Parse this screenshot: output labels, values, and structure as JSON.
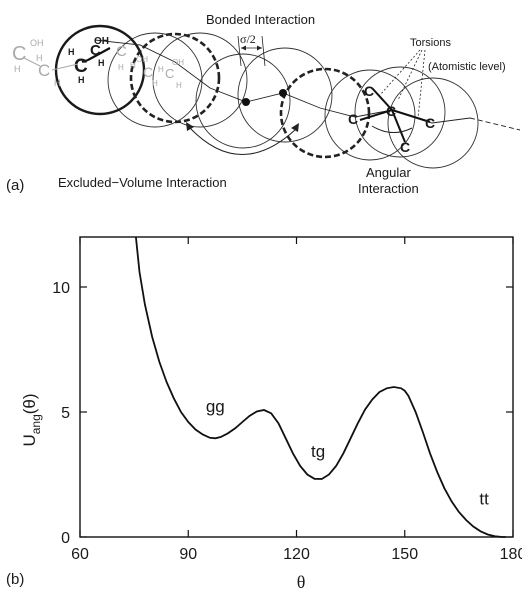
{
  "panel_a": {
    "label": "(a)",
    "bonded_label": "Bonded Interaction",
    "sigma_label": "σ/2",
    "torsions_label": "Torsions",
    "atomistic_label": "(Atomistic level)",
    "excluded_label": "Excluded−Volume Interaction",
    "angular_label_1": "Angular",
    "angular_label_2": "Interaction",
    "atoms": {
      "carbon": "C",
      "hydrogen": "H",
      "hydroxyl": "OH"
    }
  },
  "panel_b": {
    "label": "(b)",
    "xlabel": "θ",
    "ylabel": "U",
    "ylabel_sub": "ang",
    "ylabel_arg": "(θ)"
  },
  "chart_data": {
    "type": "line",
    "title": "",
    "xlabel": "θ",
    "ylabel": "U_ang(θ)",
    "xlim": [
      60,
      180
    ],
    "ylim": [
      0,
      12
    ],
    "xticks": [
      60,
      90,
      120,
      150,
      180
    ],
    "yticks": [
      0,
      5,
      10
    ],
    "grid": false,
    "series": [
      {
        "x": [
          75.5,
          76.5,
          78,
          80,
          82,
          84,
          86,
          88,
          90,
          92,
          94,
          96,
          97.5,
          99,
          101,
          103,
          105,
          107,
          109,
          111,
          113,
          115,
          117,
          119,
          121,
          123,
          125,
          127,
          129,
          131,
          133,
          135,
          137,
          139,
          141,
          143,
          145,
          147,
          149,
          150,
          151,
          153,
          155,
          157,
          159,
          161,
          163,
          165,
          167,
          169,
          171,
          173,
          175,
          177,
          178
        ],
        "values": [
          12,
          10.6,
          9.3,
          8.0,
          7.0,
          6.2,
          5.55,
          5.0,
          4.6,
          4.3,
          4.1,
          3.97,
          3.95,
          4.0,
          4.15,
          4.35,
          4.6,
          4.85,
          5.02,
          5.08,
          4.95,
          4.55,
          3.95,
          3.35,
          2.85,
          2.5,
          2.33,
          2.32,
          2.5,
          2.85,
          3.35,
          3.95,
          4.55,
          5.1,
          5.5,
          5.8,
          5.95,
          6.0,
          5.95,
          5.85,
          5.65,
          5.0,
          4.2,
          3.35,
          2.6,
          1.95,
          1.42,
          1.0,
          0.68,
          0.42,
          0.23,
          0.1,
          0.03,
          0.0,
          0.0
        ]
      }
    ],
    "annotations": [
      {
        "text": "gg",
        "x": 97.5,
        "y": 5.0
      },
      {
        "text": "tg",
        "x": 126,
        "y": 3.2
      },
      {
        "text": "tt",
        "x": 172,
        "y": 1.3
      }
    ]
  }
}
